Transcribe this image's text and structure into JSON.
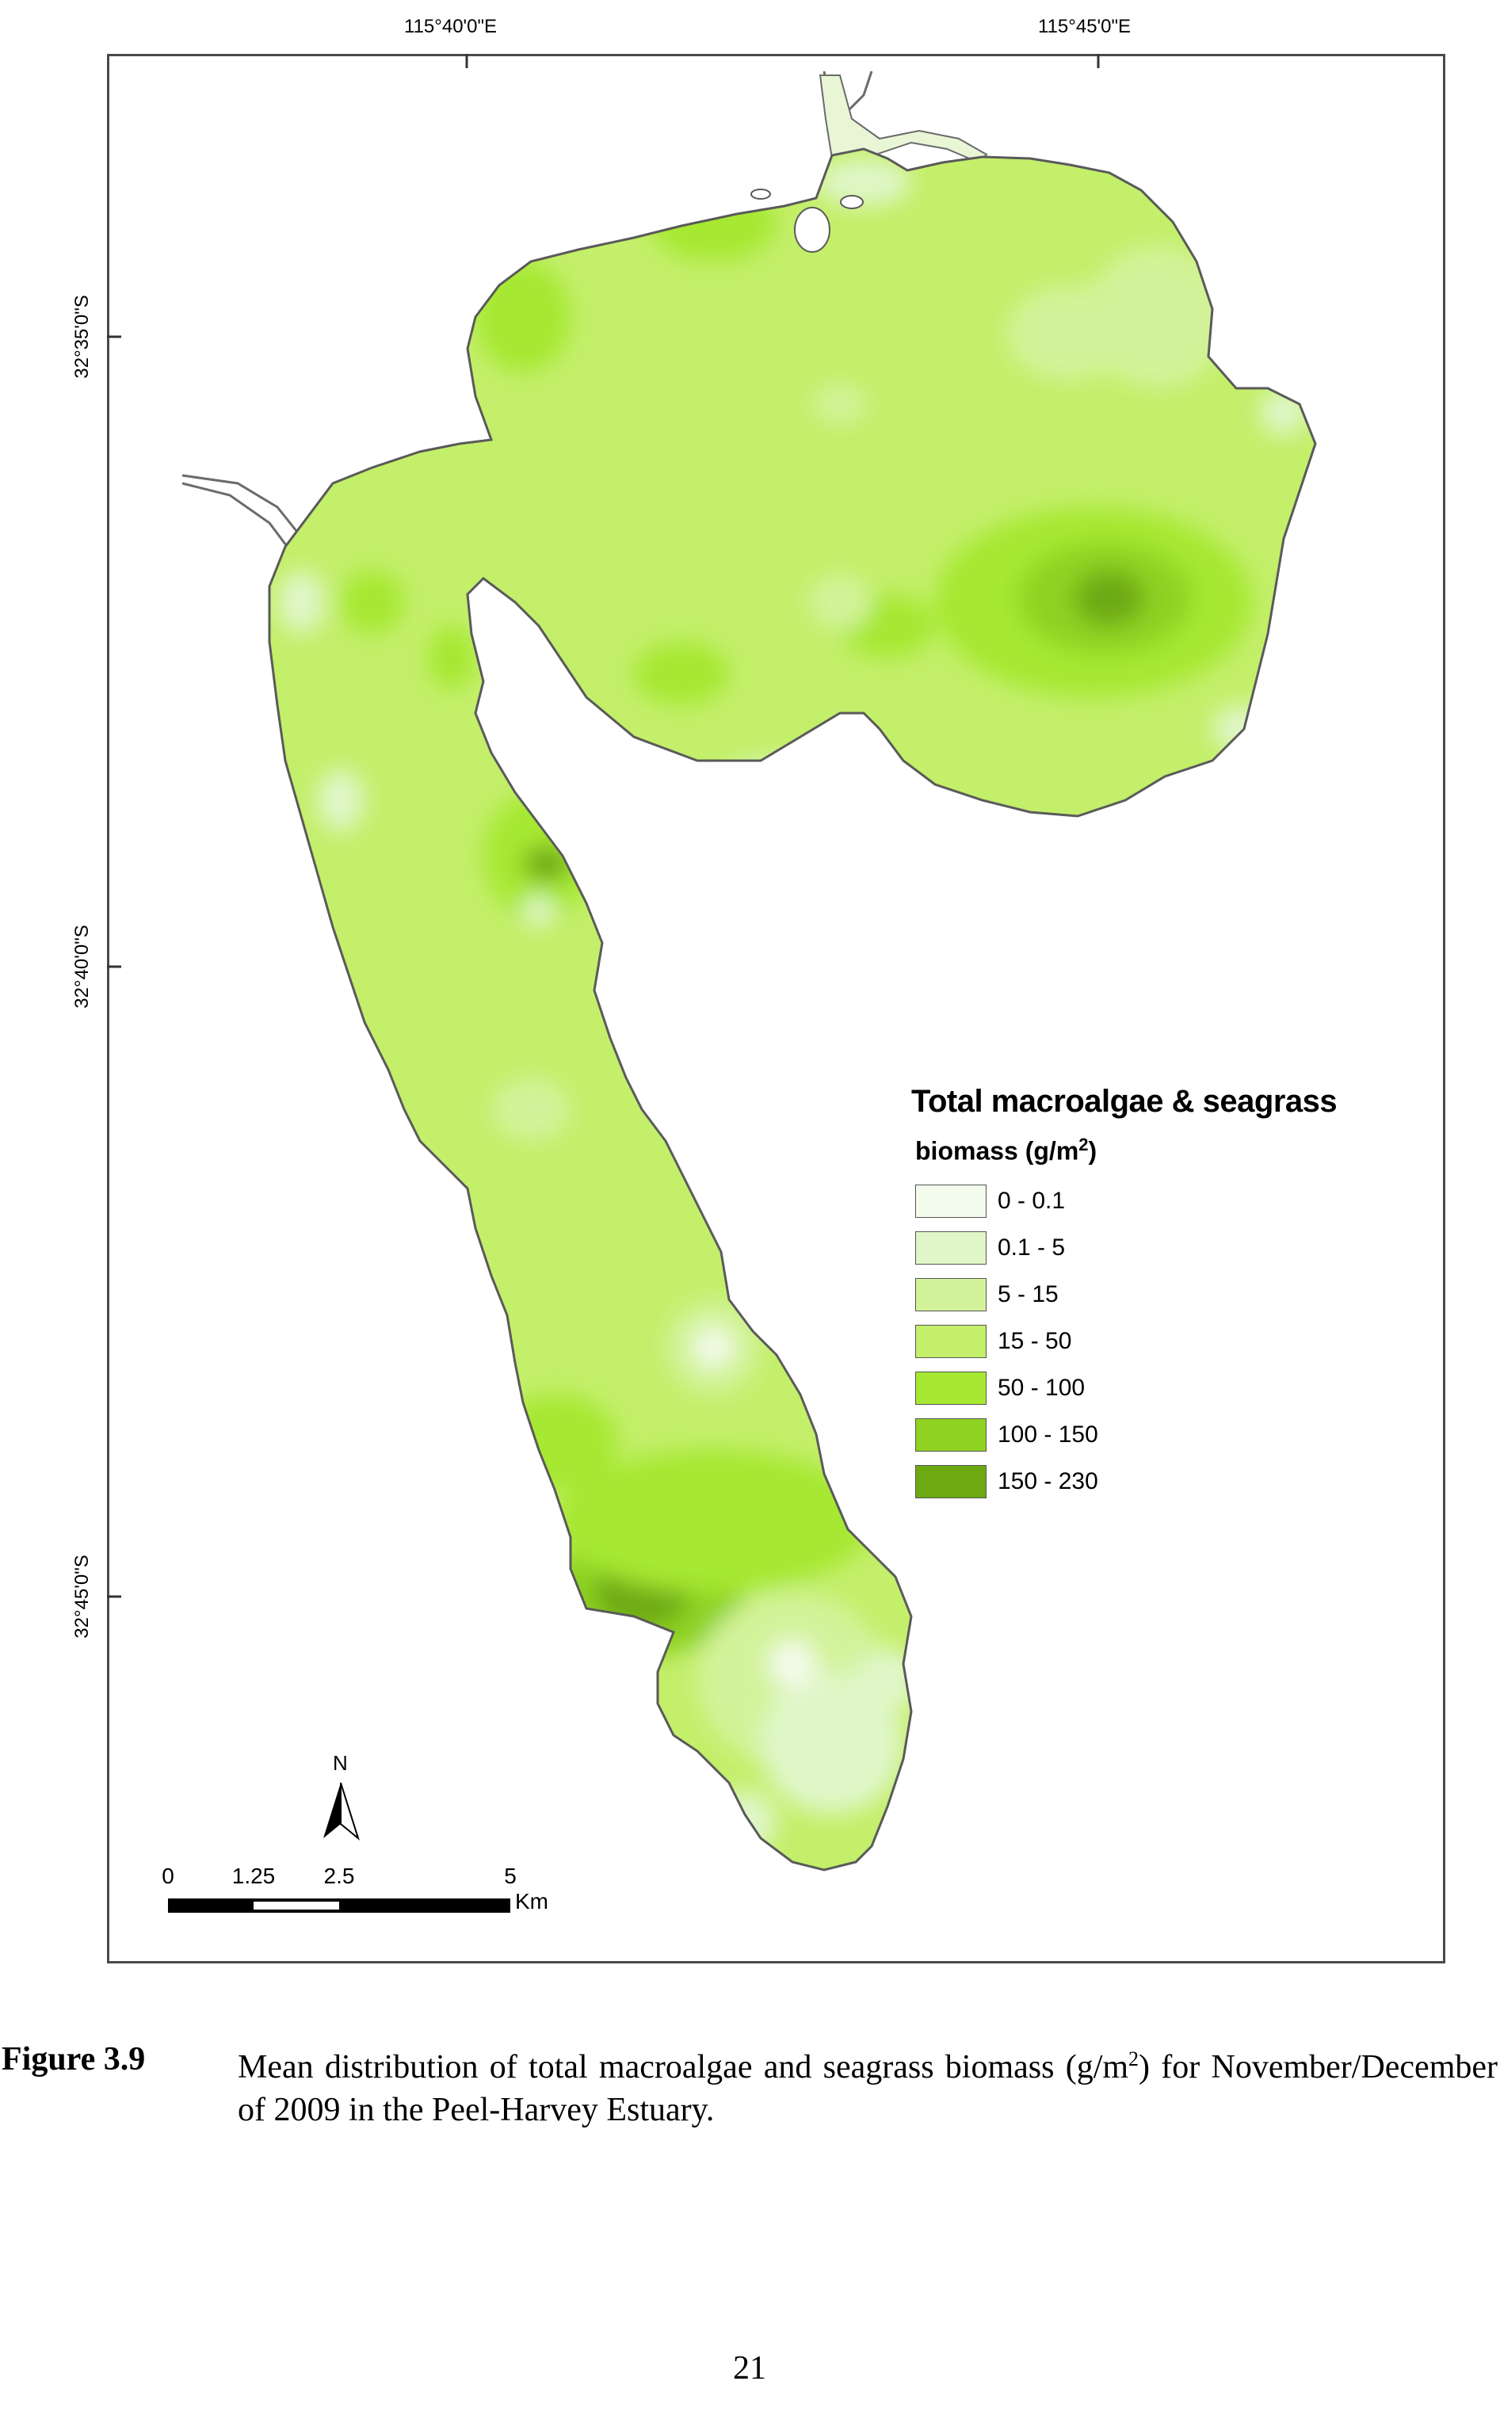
{
  "map": {
    "longitude_labels": [
      "115°40'0\"E",
      "115°45'0\"E"
    ],
    "latitude_labels": [
      "32°35'0\"S",
      "32°40'0\"S",
      "32°45'0\"S"
    ]
  },
  "legend": {
    "title": "Total macroalgae & seagrass",
    "subtitle_prefix": "biomass  (g/m",
    "subtitle_sup": "2",
    "subtitle_suffix": ")",
    "classes": [
      {
        "label": "0 - 0.1",
        "color": "#f3fbec"
      },
      {
        "label": "0.1 - 5",
        "color": "#e0f6c8"
      },
      {
        "label": "5 - 15",
        "color": "#d3f39a"
      },
      {
        "label": "15 - 50",
        "color": "#c3ef6a"
      },
      {
        "label": "50 - 100",
        "color": "#a6e832"
      },
      {
        "label": "100 - 150",
        "color": "#8fd222"
      },
      {
        "label": "150 - 230",
        "color": "#6daa12"
      }
    ]
  },
  "north_arrow": {
    "label": "N"
  },
  "scale_bar": {
    "ticks": [
      "0",
      "1.25",
      "2.5",
      "5"
    ],
    "unit": "Km"
  },
  "caption": {
    "label": "Figure 3.9",
    "text_prefix": "Mean distribution of total macroalgae and seagrass biomass (g/m",
    "text_sup": "2",
    "text_suffix": ") for November/December of 2009 in the Peel-Harvey Estuary."
  },
  "page_number": "21"
}
